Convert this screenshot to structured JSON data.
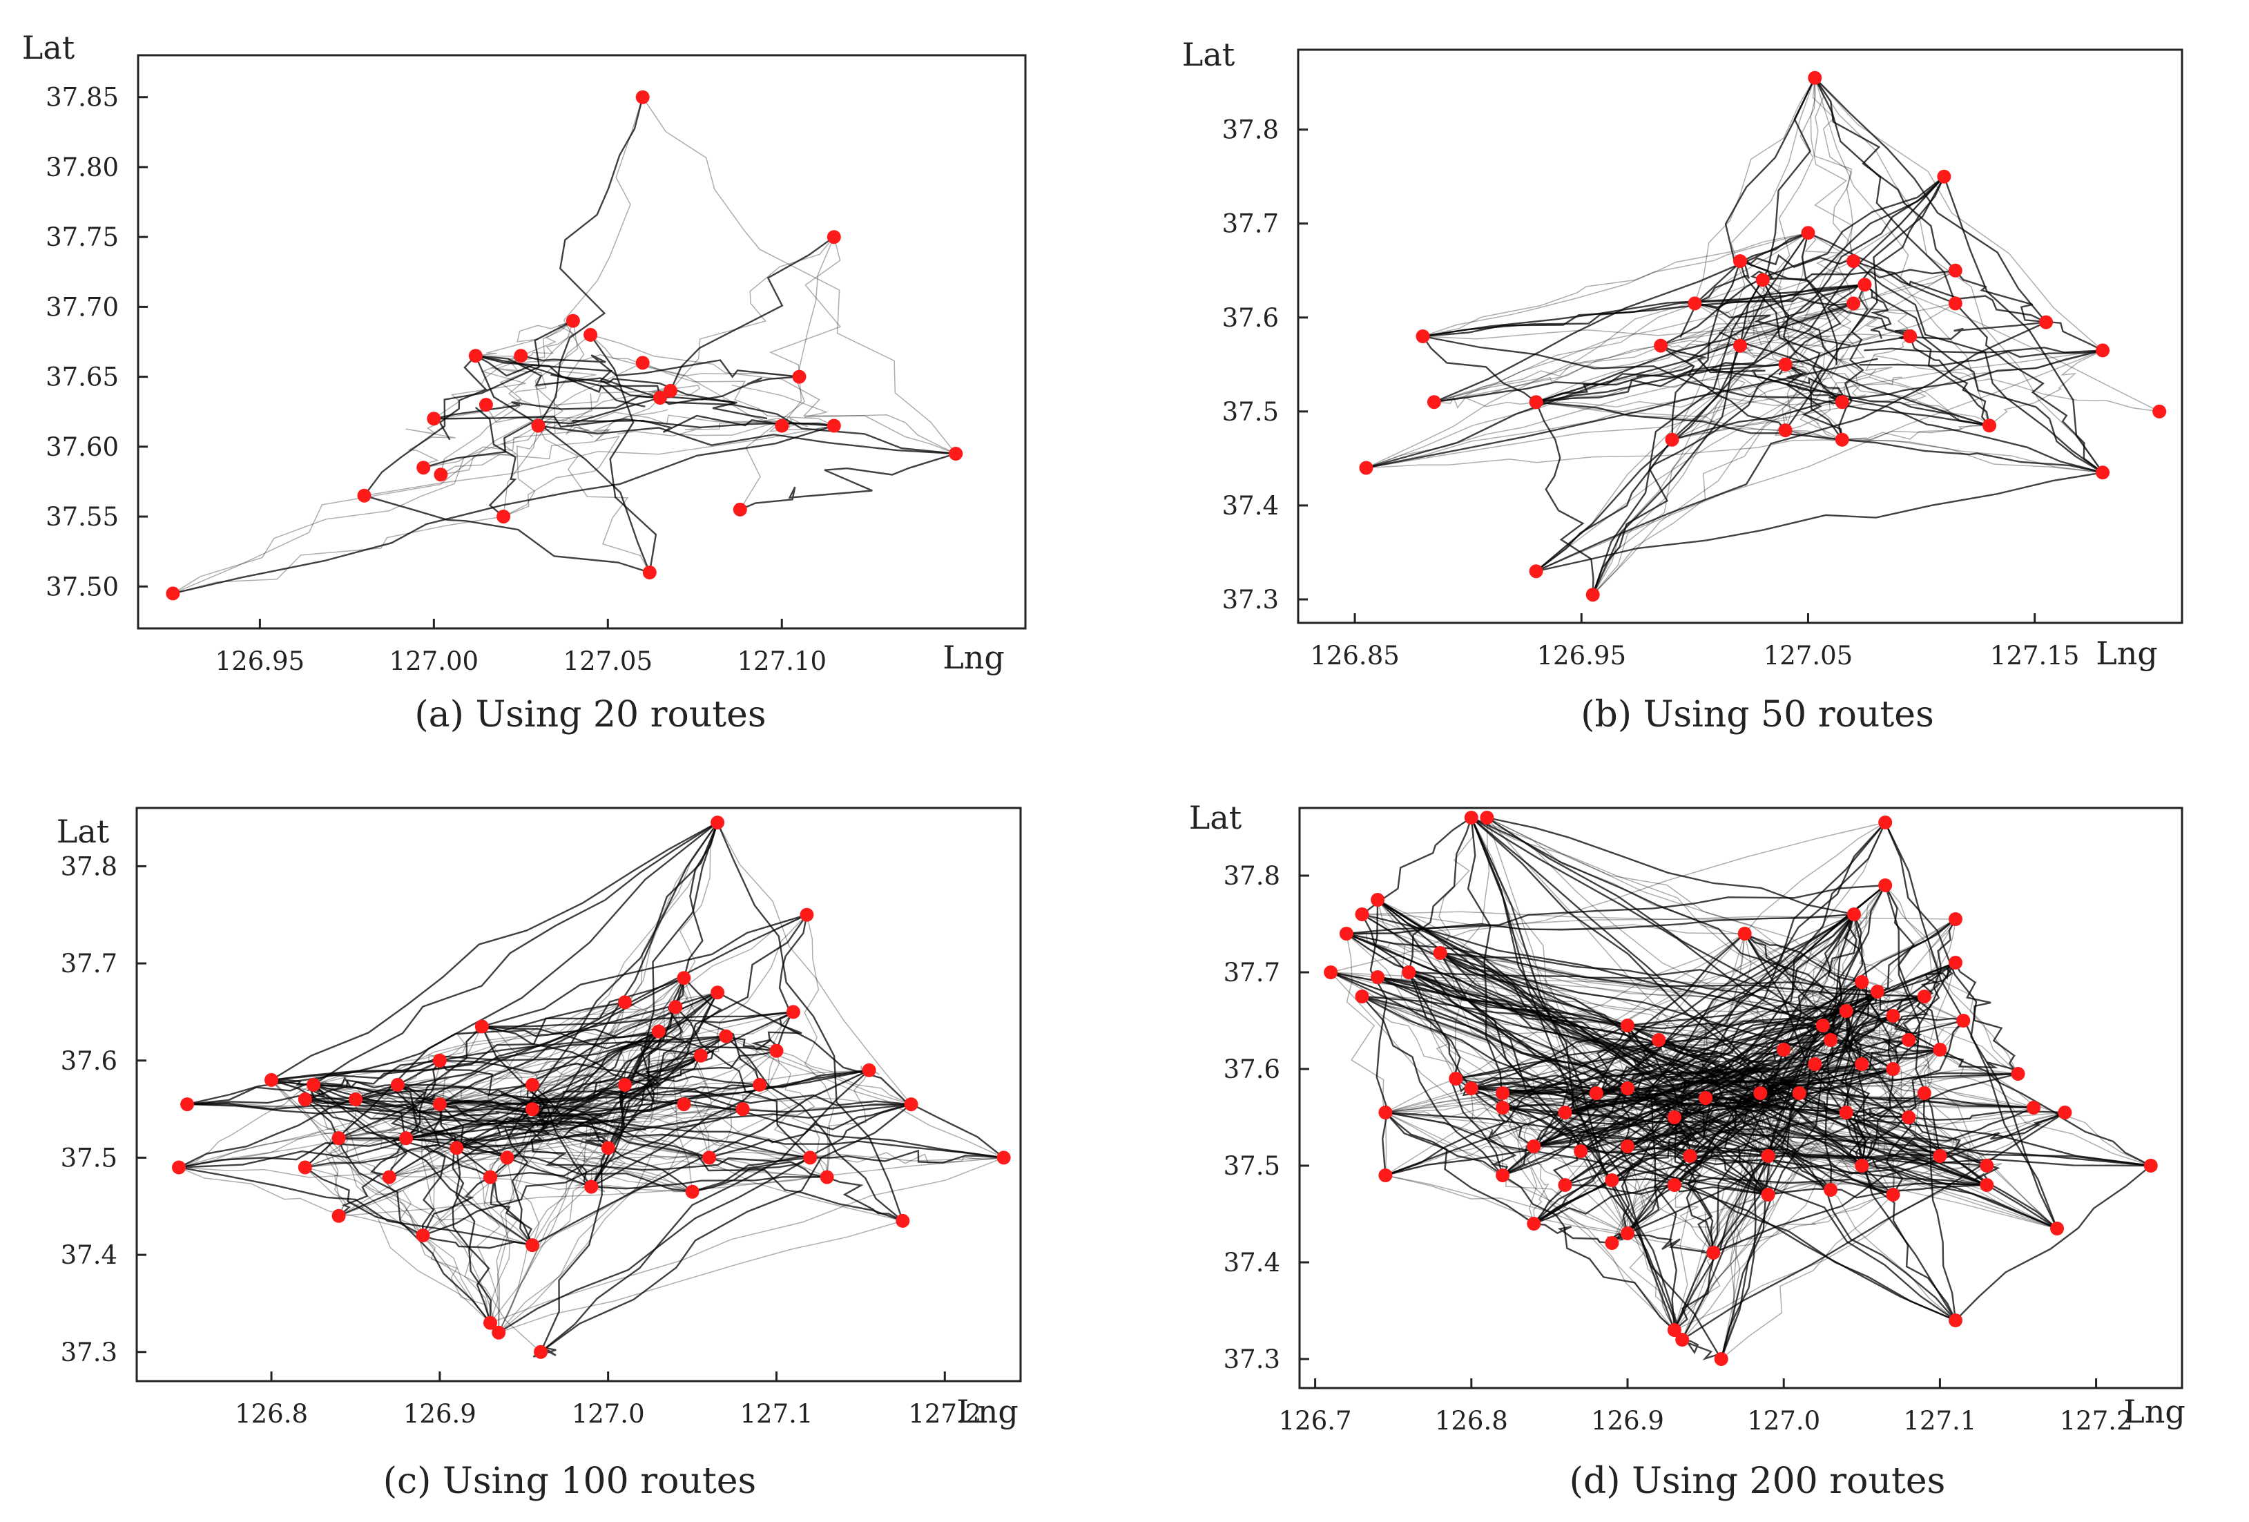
{
  "figure": "Bus route traces with stop points plotted by longitude and latitude",
  "chart_data": [
    {
      "type": "scatter",
      "title": "(a) Using 20 routes",
      "xlabel": "Lng",
      "ylabel": "Lat",
      "xlim": [
        126.915,
        127.17
      ],
      "ylim": [
        37.47,
        37.88
      ],
      "xticks": [
        "126.95",
        "127.00",
        "127.05",
        "127.10"
      ],
      "yticks": [
        "37.50",
        "37.55",
        "37.60",
        "37.65",
        "37.70",
        "37.75",
        "37.80",
        "37.85"
      ],
      "routes": 20,
      "series": [
        {
          "name": "stops",
          "color": "#ff1a1a",
          "points": [
            [
              127.06,
              37.85
            ],
            [
              127.115,
              37.75
            ],
            [
              127.04,
              37.69
            ],
            [
              127.045,
              37.68
            ],
            [
              127.012,
              37.665
            ],
            [
              127.025,
              37.665
            ],
            [
              127.06,
              37.66
            ],
            [
              127.068,
              37.64
            ],
            [
              127.065,
              37.635
            ],
            [
              127.105,
              37.65
            ],
            [
              127.015,
              37.63
            ],
            [
              127.03,
              37.615
            ],
            [
              127.0,
              37.62
            ],
            [
              127.1,
              37.615
            ],
            [
              127.115,
              37.615
            ],
            [
              127.15,
              37.595
            ],
            [
              126.997,
              37.585
            ],
            [
              127.002,
              37.58
            ],
            [
              126.98,
              37.565
            ],
            [
              127.02,
              37.55
            ],
            [
              127.088,
              37.555
            ],
            [
              127.062,
              37.51
            ],
            [
              126.925,
              37.495
            ]
          ]
        }
      ]
    },
    {
      "type": "scatter",
      "title": "(b) Using 50 routes",
      "xlabel": "Lng",
      "ylabel": "Lat",
      "xlim": [
        126.825,
        127.215
      ],
      "ylim": [
        37.275,
        37.885
      ],
      "xticks": [
        "126.85",
        "126.95",
        "127.05",
        "127.15"
      ],
      "yticks": [
        "37.3",
        "37.4",
        "37.5",
        "37.6",
        "37.7",
        "37.8"
      ],
      "routes": 50,
      "series": [
        {
          "name": "stops",
          "color": "#ff1a1a",
          "points": [
            [
              127.053,
              37.855
            ],
            [
              127.11,
              37.75
            ],
            [
              127.05,
              37.69
            ],
            [
              127.02,
              37.66
            ],
            [
              127.07,
              37.66
            ],
            [
              127.115,
              37.65
            ],
            [
              127.03,
              37.64
            ],
            [
              127.075,
              37.635
            ],
            [
              127.0,
              37.615
            ],
            [
              127.07,
              37.615
            ],
            [
              127.115,
              37.615
            ],
            [
              127.155,
              37.595
            ],
            [
              126.88,
              37.58
            ],
            [
              126.985,
              37.57
            ],
            [
              127.02,
              37.57
            ],
            [
              127.095,
              37.58
            ],
            [
              127.18,
              37.565
            ],
            [
              127.04,
              37.55
            ],
            [
              126.885,
              37.51
            ],
            [
              126.93,
              37.51
            ],
            [
              127.065,
              37.51
            ],
            [
              127.13,
              37.485
            ],
            [
              127.04,
              37.48
            ],
            [
              126.99,
              37.47
            ],
            [
              127.065,
              37.47
            ],
            [
              126.855,
              37.44
            ],
            [
              127.18,
              37.435
            ],
            [
              126.93,
              37.33
            ],
            [
              126.955,
              37.305
            ],
            [
              127.205,
              37.5
            ]
          ]
        }
      ]
    },
    {
      "type": "scatter",
      "title": "(c) Using 100 routes",
      "xlabel": "Lng",
      "ylabel": "Lat",
      "xlim": [
        126.72,
        127.245
      ],
      "ylim": [
        37.27,
        37.86
      ],
      "xticks": [
        "126.8",
        "126.9",
        "127.0",
        "127.1",
        "127.2"
      ],
      "yticks": [
        "37.3",
        "37.4",
        "37.5",
        "37.6",
        "37.7",
        "37.8"
      ],
      "routes": 100,
      "series": [
        {
          "name": "stops",
          "color": "#ff1a1a",
          "points": [
            [
              127.065,
              37.845
            ],
            [
              127.118,
              37.75
            ],
            [
              127.045,
              37.685
            ],
            [
              127.065,
              37.67
            ],
            [
              127.01,
              37.66
            ],
            [
              127.04,
              37.655
            ],
            [
              127.11,
              37.65
            ],
            [
              126.925,
              37.635
            ],
            [
              127.03,
              37.63
            ],
            [
              127.07,
              37.625
            ],
            [
              127.1,
              37.61
            ],
            [
              127.055,
              37.605
            ],
            [
              126.9,
              37.6
            ],
            [
              126.8,
              37.58
            ],
            [
              126.825,
              37.575
            ],
            [
              126.875,
              37.575
            ],
            [
              126.955,
              37.575
            ],
            [
              127.01,
              37.575
            ],
            [
              127.09,
              37.575
            ],
            [
              127.155,
              37.59
            ],
            [
              126.82,
              37.56
            ],
            [
              126.85,
              37.56
            ],
            [
              126.9,
              37.555
            ],
            [
              126.955,
              37.55
            ],
            [
              127.045,
              37.555
            ],
            [
              127.08,
              37.55
            ],
            [
              126.75,
              37.555
            ],
            [
              127.18,
              37.555
            ],
            [
              126.84,
              37.52
            ],
            [
              126.88,
              37.52
            ],
            [
              126.91,
              37.51
            ],
            [
              126.94,
              37.5
            ],
            [
              127.0,
              37.51
            ],
            [
              127.06,
              37.5
            ],
            [
              127.12,
              37.5
            ],
            [
              126.82,
              37.49
            ],
            [
              126.87,
              37.48
            ],
            [
              126.93,
              37.48
            ],
            [
              126.99,
              37.47
            ],
            [
              127.05,
              37.465
            ],
            [
              127.13,
              37.48
            ],
            [
              126.84,
              37.44
            ],
            [
              126.89,
              37.42
            ],
            [
              126.745,
              37.49
            ],
            [
              127.175,
              37.435
            ],
            [
              126.955,
              37.41
            ],
            [
              126.93,
              37.33
            ],
            [
              126.935,
              37.32
            ],
            [
              126.96,
              37.3
            ],
            [
              127.235,
              37.5
            ]
          ]
        }
      ]
    },
    {
      "type": "scatter",
      "title": "(d) Using 200 routes",
      "xlabel": "Lng",
      "ylabel": "Lat",
      "xlim": [
        126.69,
        127.255
      ],
      "ylim": [
        37.27,
        37.87
      ],
      "xticks": [
        "126.7",
        "126.8",
        "126.9",
        "127.0",
        "127.1",
        "127.2"
      ],
      "yticks": [
        "37.3",
        "37.4",
        "37.5",
        "37.6",
        "37.7",
        "37.8"
      ],
      "routes": 200,
      "series": [
        {
          "name": "stops",
          "color": "#ff1a1a",
          "points": [
            [
              126.8,
              37.86
            ],
            [
              126.81,
              37.86
            ],
            [
              127.065,
              37.855
            ],
            [
              126.74,
              37.775
            ],
            [
              126.73,
              37.76
            ],
            [
              126.72,
              37.74
            ],
            [
              127.045,
              37.76
            ],
            [
              127.065,
              37.79
            ],
            [
              127.11,
              37.755
            ],
            [
              126.975,
              37.74
            ],
            [
              126.78,
              37.72
            ],
            [
              126.71,
              37.7
            ],
            [
              126.74,
              37.695
            ],
            [
              126.76,
              37.7
            ],
            [
              126.73,
              37.675
            ],
            [
              127.11,
              37.71
            ],
            [
              127.05,
              37.69
            ],
            [
              127.06,
              37.68
            ],
            [
              127.09,
              37.675
            ],
            [
              127.04,
              37.66
            ],
            [
              127.07,
              37.655
            ],
            [
              127.025,
              37.645
            ],
            [
              127.115,
              37.65
            ],
            [
              126.9,
              37.645
            ],
            [
              126.92,
              37.63
            ],
            [
              127.0,
              37.62
            ],
            [
              127.03,
              37.63
            ],
            [
              127.08,
              37.63
            ],
            [
              127.1,
              37.62
            ],
            [
              127.02,
              37.605
            ],
            [
              127.05,
              37.605
            ],
            [
              127.07,
              37.6
            ],
            [
              127.15,
              37.595
            ],
            [
              126.79,
              37.59
            ],
            [
              126.8,
              37.58
            ],
            [
              126.82,
              37.575
            ],
            [
              126.88,
              37.575
            ],
            [
              126.9,
              37.58
            ],
            [
              126.95,
              37.57
            ],
            [
              126.985,
              37.575
            ],
            [
              127.01,
              37.575
            ],
            [
              127.09,
              37.575
            ],
            [
              126.745,
              37.555
            ],
            [
              126.82,
              37.56
            ],
            [
              126.86,
              37.555
            ],
            [
              126.93,
              37.55
            ],
            [
              127.04,
              37.555
            ],
            [
              127.08,
              37.55
            ],
            [
              127.16,
              37.56
            ],
            [
              127.18,
              37.555
            ],
            [
              126.84,
              37.52
            ],
            [
              126.87,
              37.515
            ],
            [
              126.9,
              37.52
            ],
            [
              126.94,
              37.51
            ],
            [
              126.99,
              37.51
            ],
            [
              127.05,
              37.5
            ],
            [
              127.1,
              37.51
            ],
            [
              127.13,
              37.5
            ],
            [
              126.82,
              37.49
            ],
            [
              126.86,
              37.48
            ],
            [
              126.89,
              37.485
            ],
            [
              126.93,
              37.48
            ],
            [
              126.99,
              37.47
            ],
            [
              127.03,
              37.475
            ],
            [
              127.07,
              37.47
            ],
            [
              127.13,
              37.48
            ],
            [
              126.745,
              37.49
            ],
            [
              126.84,
              37.44
            ],
            [
              126.89,
              37.42
            ],
            [
              126.9,
              37.43
            ],
            [
              127.175,
              37.435
            ],
            [
              126.955,
              37.41
            ],
            [
              127.11,
              37.34
            ],
            [
              126.93,
              37.33
            ],
            [
              126.935,
              37.32
            ],
            [
              126.96,
              37.3
            ],
            [
              127.235,
              37.5
            ]
          ]
        }
      ]
    }
  ],
  "captions": {
    "a": "(a) Using 20 routes",
    "b": "(b) Using 50 routes",
    "c": "(c) Using 100 routes",
    "d": "(d) Using 200 routes"
  }
}
